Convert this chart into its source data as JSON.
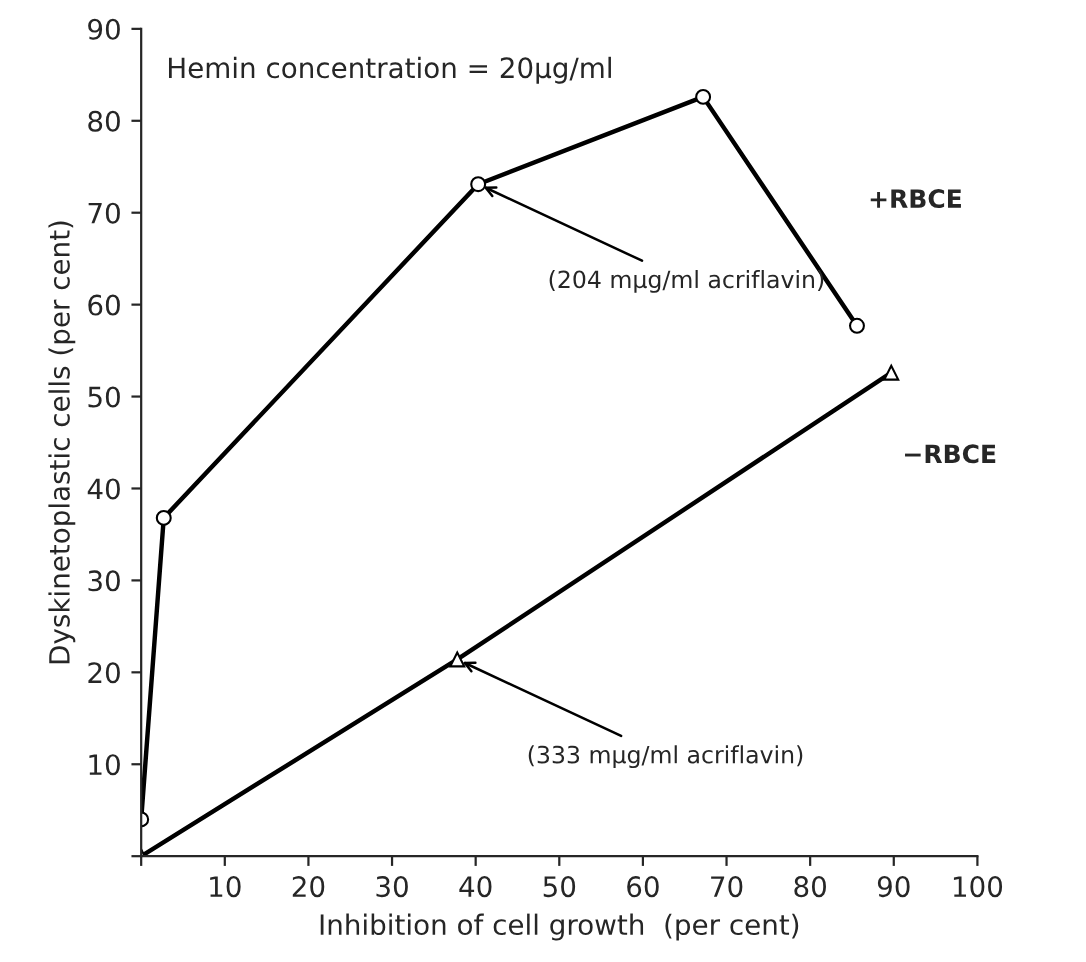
{
  "chart_data": {
    "type": "line",
    "xlabel": "Inhibition of cell growth  (per cent)",
    "ylabel": "Dyskinetoplastic cells (per cent)",
    "series": [
      {
        "name": "+RBCE",
        "color": "#000000",
        "marker": "circle",
        "x": [
          0,
          2.7,
          40.3,
          67.2,
          85.6
        ],
        "values": [
          4,
          36.8,
          73.1,
          82.6,
          57.7
        ]
      },
      {
        "name": "−RBCE",
        "color": "#000000",
        "marker": "triangle",
        "x": [
          0,
          37.8,
          89.7
        ],
        "values": [
          0,
          21.4,
          52.6
        ]
      }
    ],
    "xlim": [
      0,
      100
    ],
    "ylim": [
      0,
      90
    ],
    "xticks": [
      {
        "value": 0,
        "label": null
      },
      10,
      20,
      30,
      40,
      50,
      60,
      70,
      80,
      90,
      100
    ],
    "yticks": [
      {
        "value": 0,
        "label": null
      },
      10,
      20,
      30,
      40,
      50,
      60,
      70,
      80,
      90
    ],
    "annotations": [
      "Hemin concentration = 20μg/ml",
      {
        "text": "(204 mμg/ml acriflavin)",
        "x": 40.3,
        "y": 73.1
      },
      {
        "text": "(333 mμg/ml acriflavin)",
        "x": 37.8,
        "y": 21.4
      }
    ],
    "grid": false,
    "legend": false
  }
}
